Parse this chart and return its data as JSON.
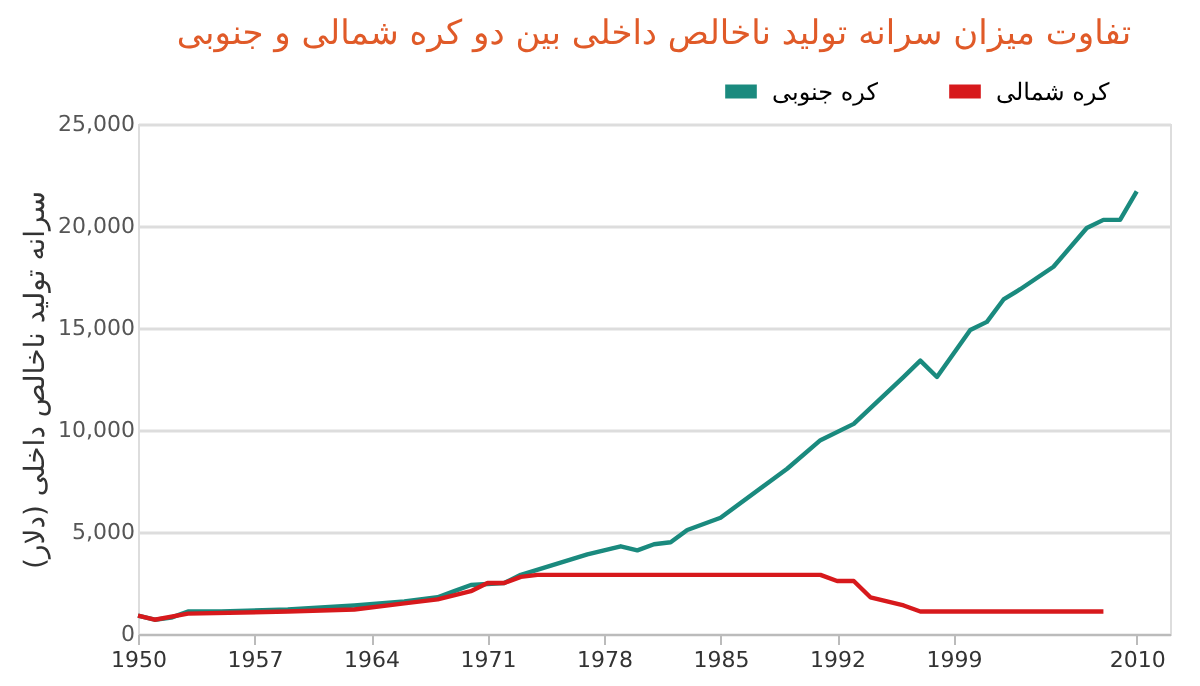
{
  "chart_data": {
    "type": "line",
    "title": "تفاوت میزان سرانه تولید ناخالص داخلی بین دو کره شمالی و جنوبی",
    "ylabel": "سرانه تولید ناخالص داخلی (دلار)",
    "xlim": [
      1950,
      2012
    ],
    "xticks": [
      1950,
      1957,
      1964,
      1971,
      1978,
      1985,
      1992,
      1999,
      2010
    ],
    "ylim": [
      0,
      25000
    ],
    "yticks": [
      {
        "value": 0,
        "label": "0"
      },
      {
        "value": 5000,
        "label": "5,000"
      },
      {
        "value": 10000,
        "label": "10,000"
      },
      {
        "value": 15000,
        "label": "15,000"
      },
      {
        "value": 20000,
        "label": "20,000"
      },
      {
        "value": 25000,
        "label": "25,000"
      }
    ],
    "grid": "y",
    "legend": "top right",
    "line_style": "solid",
    "marker": "none",
    "series": [
      {
        "name": "کره جنوبی",
        "color": "#1a8a7e",
        "x": [
          1950,
          1951,
          1952,
          1953,
          1955,
          1959,
          1963,
          1966,
          1968,
          1969,
          1970,
          1972,
          1973,
          1975,
          1977,
          1979,
          1980,
          1981,
          1982,
          1983,
          1985,
          1988,
          1989,
          1991,
          1993,
          1996,
          1997,
          1998,
          2000,
          2001,
          2002,
          2003,
          2005,
          2007,
          2008,
          2009,
          2010
        ],
        "values": [
          900,
          700,
          800,
          1100,
          1100,
          1200,
          1400,
          1600,
          1800,
          2100,
          2400,
          2500,
          2900,
          3400,
          3900,
          4300,
          4100,
          4400,
          4500,
          5100,
          5700,
          7500,
          8100,
          9500,
          10300,
          12600,
          13400,
          12600,
          14900,
          15300,
          16400,
          16900,
          18000,
          19900,
          20300,
          20300,
          21700
        ]
      },
      {
        "name": "کره شمالی",
        "color": "#d7191c",
        "x": [
          1950,
          1951,
          1953,
          1959,
          1963,
          1966,
          1968,
          1970,
          1971,
          1972,
          1973,
          1974,
          1991,
          1992,
          1993,
          1994,
          1996,
          1997,
          2005,
          2006,
          2008
        ],
        "values": [
          900,
          700,
          1000,
          1100,
          1200,
          1500,
          1700,
          2100,
          2500,
          2500,
          2800,
          2900,
          2900,
          2600,
          2600,
          1800,
          1400,
          1100,
          1100,
          1100,
          1100
        ]
      }
    ]
  }
}
